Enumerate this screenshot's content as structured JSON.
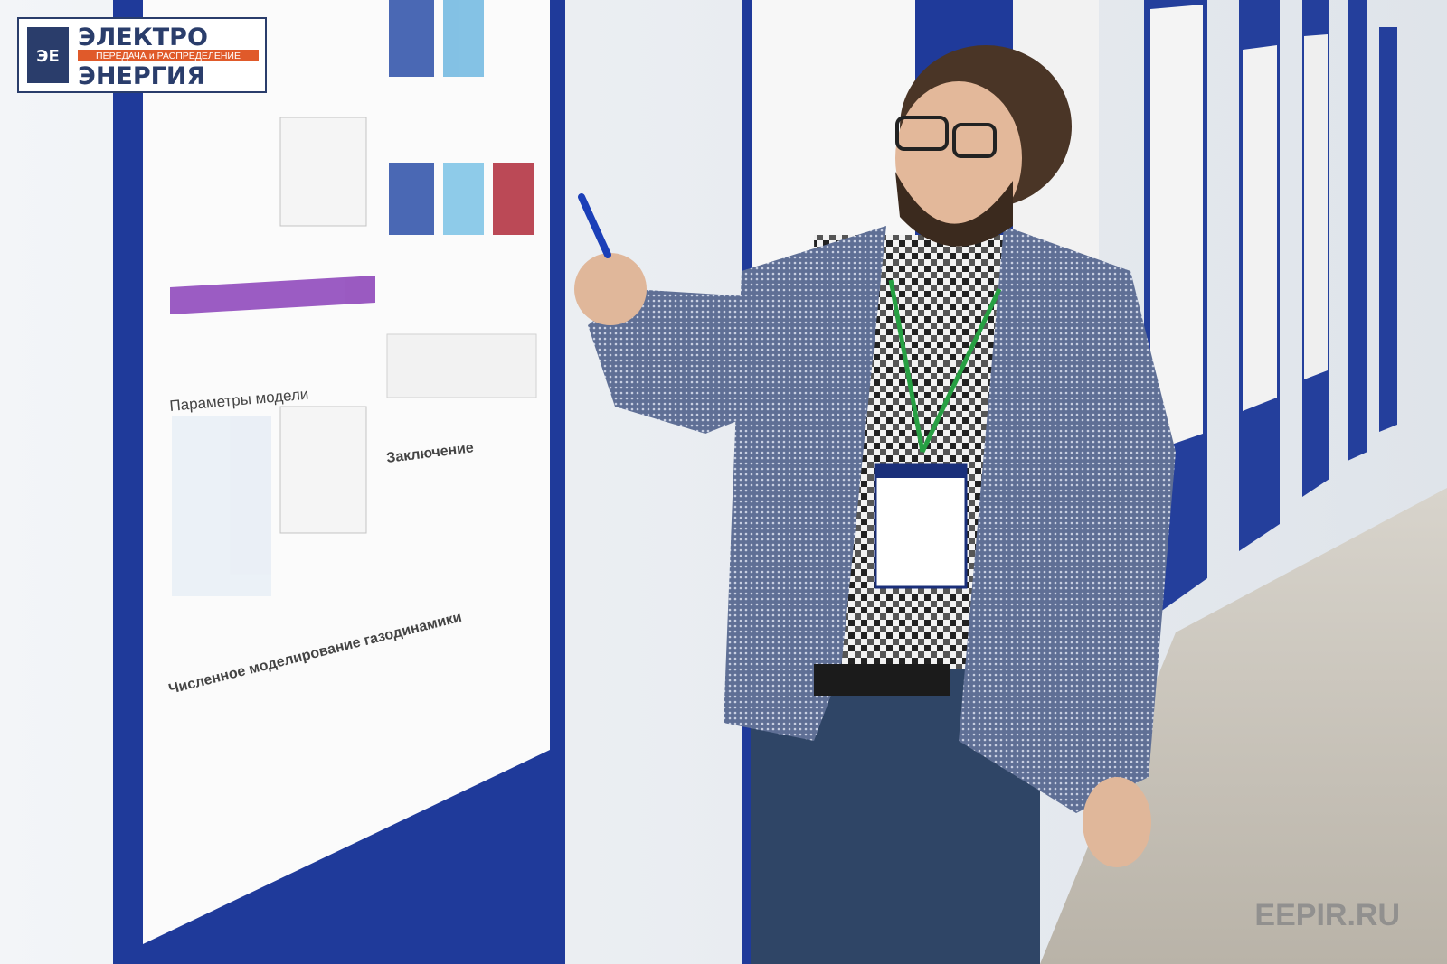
{
  "logo": {
    "line1": "ЭЛЕКТРО",
    "line2": "ПЕРЕДАЧА и РАСПРЕДЕЛЕНИЕ",
    "line3": "ЭНЕРГИЯ"
  },
  "poster": {
    "headings": [
      "Параметры модели",
      "Численное моделирование газодинамики",
      "Заключение"
    ]
  },
  "watermark": "EEPIR.RU"
}
